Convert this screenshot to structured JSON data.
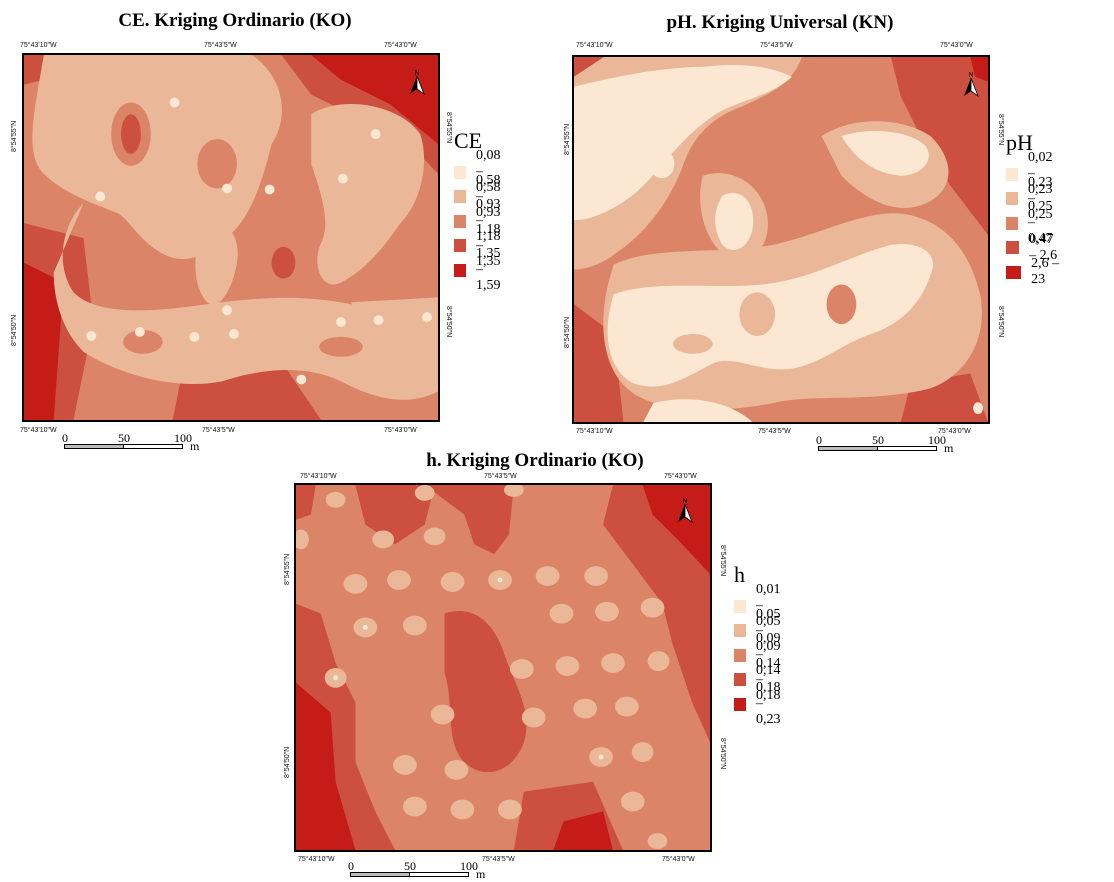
{
  "maps": [
    {
      "title": "CE. Kriging Ordinario (KO)",
      "legend_title": "CE",
      "legend": [
        {
          "label": "0,08 – 0,58",
          "color": "#fce7d2"
        },
        {
          "label": "0,58 – 0,93",
          "color": "#eab898"
        },
        {
          "label": "0,93 – 1,18",
          "color": "#db8468"
        },
        {
          "label": "1,18 – 1,35",
          "color": "#cc4f3f"
        },
        {
          "label": "1,35 – 1,59",
          "color": "#c51c18"
        }
      ],
      "ticks": {
        "top": [
          "75°43'10\"W",
          "75°43'5\"W",
          "75°43'0\"W"
        ],
        "bottom": [
          "75°43'10\"W",
          "75°43'5\"W",
          "75°43'0\"W"
        ],
        "left": [
          "8°54'55\"N",
          "8°54'50\"N"
        ],
        "right": [
          "8°54'55\"N",
          "8°54'50\"N"
        ]
      },
      "scale": {
        "labels": [
          "0",
          "50",
          "100"
        ],
        "unit": "m"
      },
      "north_label": "N"
    },
    {
      "title": "pH. Kriging Universal (KN)",
      "legend_title": "pH",
      "legend": [
        {
          "label": "0,02 – 0,23",
          "color": "#fce7d2"
        },
        {
          "label": "0,23 – 0,25",
          "color": "#eab898"
        },
        {
          "label": "0,25 – 0,47",
          "color": "#db8468"
        },
        {
          "label": "0,47 – 2,6",
          "color": "#cc4f3f"
        },
        {
          "label": "2,6 – 23",
          "color": "#c51c18"
        }
      ],
      "ticks": {
        "top": [
          "75°43'10\"W",
          "75°43'5\"W",
          "75°43'0\"W"
        ],
        "bottom": [
          "75°43'10\"W",
          "75°43'5\"W",
          "75°43'0\"W"
        ],
        "left": [
          "8°54'55\"N",
          "8°54'50\"N"
        ],
        "right": [
          "8°54'55\"N",
          "8°54'50\"N"
        ]
      },
      "scale": {
        "labels": [
          "0",
          "50",
          "100"
        ],
        "unit": "m"
      },
      "north_label": "N"
    },
    {
      "title": "h. Kriging Ordinario (KO)",
      "legend_title": "h",
      "legend": [
        {
          "label": "0,01 – 0,05",
          "color": "#fce7d2"
        },
        {
          "label": "0,05 – 0,09",
          "color": "#eab898"
        },
        {
          "label": "0,09 – 0,14",
          "color": "#db8468"
        },
        {
          "label": "0,14 – 0,18",
          "color": "#cc4f3f"
        },
        {
          "label": "0,18 – 0,23",
          "color": "#c51c18"
        }
      ],
      "ticks": {
        "top": [
          "75°43'10\"W",
          "75°43'5\"W",
          "75°43'0\"W"
        ],
        "bottom": [
          "75°43'10\"W",
          "75°43'5\"W",
          "75°43'0\"W"
        ],
        "left": [
          "8°54'55\"N",
          "8°54'50\"N"
        ],
        "right": [
          "8°54'55\"N",
          "8°54'50\"N"
        ]
      },
      "scale": {
        "labels": [
          "0",
          "50",
          "100"
        ],
        "unit": "m"
      },
      "north_label": "N"
    }
  ]
}
